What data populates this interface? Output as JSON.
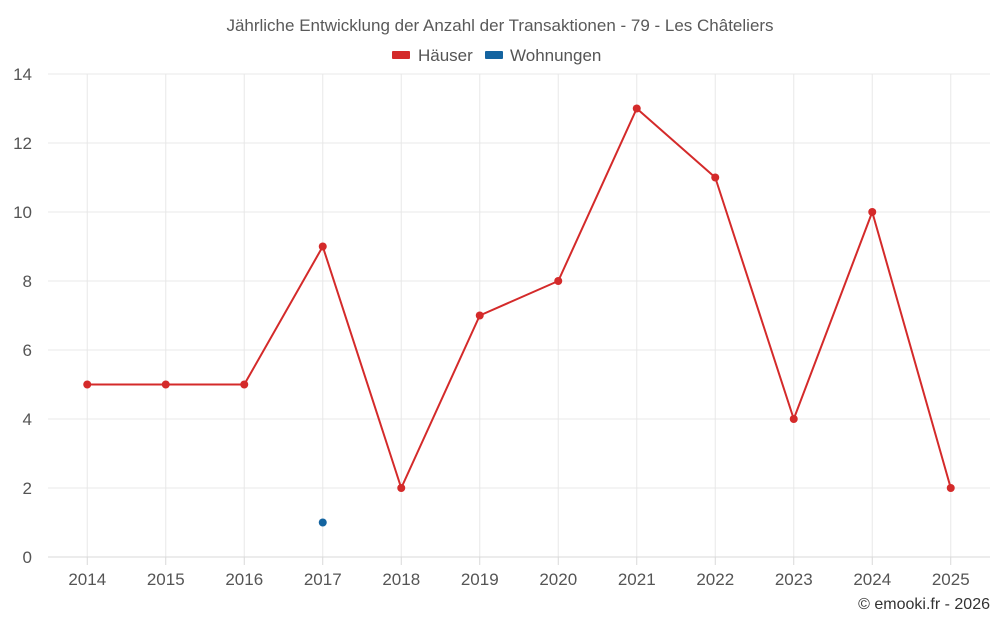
{
  "chart_data": {
    "type": "line",
    "title": "Jährliche Entwicklung der Anzahl der Transaktionen - 79 - Les Châteliers",
    "categories": [
      "2014",
      "2015",
      "2016",
      "2017",
      "2018",
      "2019",
      "2020",
      "2021",
      "2022",
      "2023",
      "2024",
      "2025"
    ],
    "series": [
      {
        "name": "Häuser",
        "color": "#d42a2a",
        "values": [
          5,
          5,
          5,
          9,
          2,
          7,
          8,
          13,
          11,
          4,
          10,
          2
        ]
      },
      {
        "name": "Wohnungen",
        "color": "#1464a0",
        "values": [
          null,
          null,
          null,
          1,
          null,
          null,
          null,
          null,
          null,
          null,
          null,
          null
        ]
      }
    ],
    "yticks": [
      "0",
      "2",
      "4",
      "6",
      "8",
      "10",
      "12",
      "14"
    ],
    "ylim": [
      0,
      14
    ],
    "xlabel": "",
    "ylabel": "",
    "grid": true,
    "legend_position": "top-center"
  },
  "credit": "© emooki.fr - 2026"
}
